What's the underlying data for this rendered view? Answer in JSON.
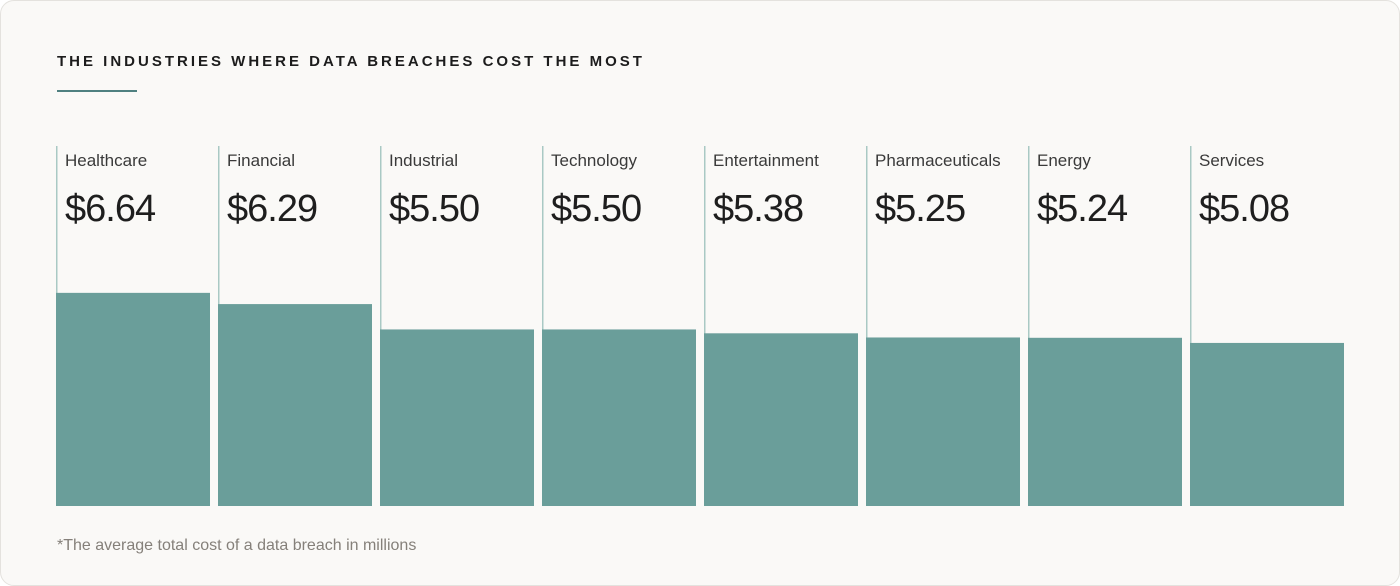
{
  "chart_data": {
    "type": "bar",
    "title": "THE INDUSTRIES WHERE DATA BREACHES COST THE MOST",
    "categories": [
      "Healthcare",
      "Financial",
      "Industrial",
      "Technology",
      "Entertainment",
      "Pharmaceuticals",
      "Energy",
      "Services"
    ],
    "values": [
      6.64,
      6.29,
      5.5,
      5.5,
      5.38,
      5.25,
      5.24,
      5.08
    ],
    "value_labels": [
      "$6.64",
      "$6.29",
      "$5.50",
      "$5.50",
      "$5.38",
      "$5.25",
      "$5.24",
      "$5.08"
    ],
    "bar_color": "#6a9e9a",
    "footnote": "*The average total cost of a data breach in millions"
  }
}
